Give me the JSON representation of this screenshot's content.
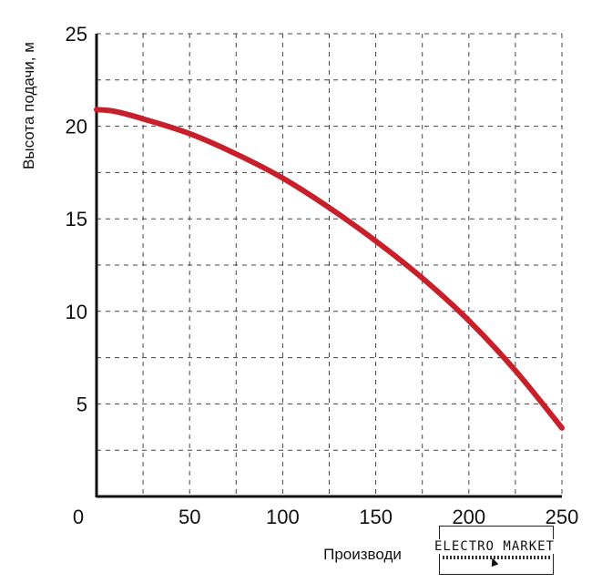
{
  "chart_data": {
    "type": "line",
    "title": "",
    "xlabel": "Производи",
    "ylabel": "Высота подачи, м",
    "xlim": [
      0,
      250
    ],
    "ylim": [
      0,
      25
    ],
    "x_ticks": [
      0,
      50,
      100,
      150,
      200,
      250
    ],
    "y_ticks": [
      5,
      10,
      15,
      20,
      25
    ],
    "x_tick_labels": [
      "0",
      "50",
      "100",
      "150",
      "200",
      "250"
    ],
    "y_tick_labels": [
      "5",
      "10",
      "15",
      "20",
      "25"
    ],
    "grid": true,
    "legend": "none",
    "series": [
      {
        "color": "#c8202a",
        "x": [
          0,
          10,
          25,
          50,
          75,
          100,
          125,
          150,
          175,
          200,
          225,
          250
        ],
        "y": [
          20.9,
          20.8,
          20.4,
          19.6,
          18.5,
          17.2,
          15.6,
          13.8,
          11.8,
          9.5,
          6.8,
          3.7
        ]
      }
    ]
  },
  "logo": {
    "text": "ELECTRO MARKET"
  }
}
